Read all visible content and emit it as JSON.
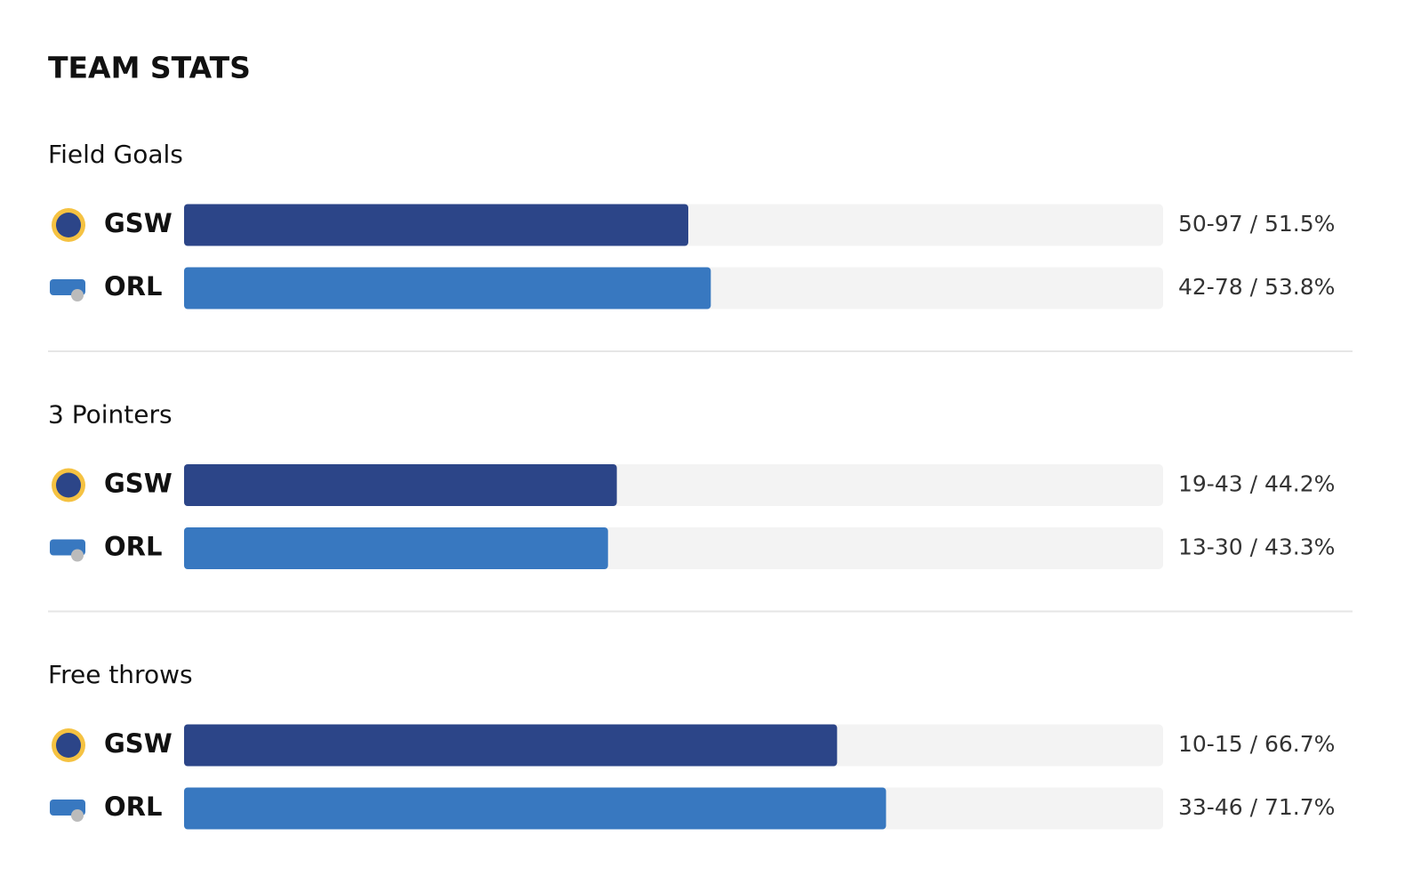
{
  "title": "TEAM STATS",
  "chart_data": [
    {
      "type": "bar",
      "title": "Field Goals",
      "categories": [
        "GSW",
        "ORL"
      ],
      "values": [
        51.5,
        53.8
      ],
      "value_labels": [
        "50-97 / 51.5%",
        "42-78 / 53.8%"
      ],
      "colors": [
        "#2c4588",
        "#3878c0"
      ],
      "xlim": [
        0,
        100
      ]
    },
    {
      "type": "bar",
      "title": "3 Pointers",
      "categories": [
        "GSW",
        "ORL"
      ],
      "values": [
        44.2,
        43.3
      ],
      "value_labels": [
        "19-43 / 44.2%",
        "13-30 / 43.3%"
      ],
      "colors": [
        "#2c4588",
        "#3878c0"
      ],
      "xlim": [
        0,
        100
      ]
    },
    {
      "type": "bar",
      "title": "Free throws",
      "categories": [
        "GSW",
        "ORL"
      ],
      "values": [
        66.7,
        71.7
      ],
      "value_labels": [
        "10-15 / 66.7%",
        "33-46 / 71.7%"
      ],
      "colors": [
        "#2c4588",
        "#3878c0"
      ],
      "xlim": [
        0,
        100
      ]
    }
  ]
}
